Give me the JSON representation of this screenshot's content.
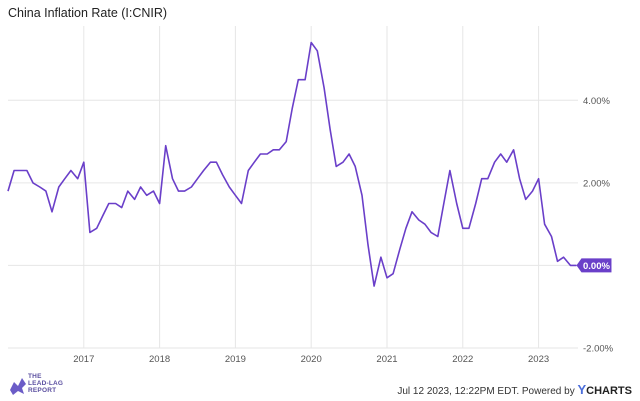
{
  "chart_data": {
    "type": "line",
    "title": "China Inflation Rate (I:CNIR)",
    "xlabel": "",
    "ylabel": "",
    "ylim": [
      -2.0,
      5.8
    ],
    "x_ticks": [
      "2017",
      "2018",
      "2019",
      "2020",
      "2021",
      "2022",
      "2023"
    ],
    "x_tick_positions": [
      2017,
      2018,
      2019,
      2020,
      2021,
      2022,
      2023
    ],
    "xlim": [
      2016.0,
      2023.52
    ],
    "y_ticks": [
      {
        "value": 4.0,
        "label": "4.00%"
      },
      {
        "value": 2.0,
        "label": "2.00%"
      },
      {
        "value": -2.0,
        "label": "-2.00%"
      }
    ],
    "last_value_label": "0.00%",
    "series": [
      {
        "name": "China Inflation Rate",
        "color": "#6a3fc9",
        "x": [
          2016.0,
          2016.08,
          2016.17,
          2016.25,
          2016.33,
          2016.42,
          2016.5,
          2016.58,
          2016.67,
          2016.75,
          2016.83,
          2016.92,
          2017.0,
          2017.08,
          2017.17,
          2017.25,
          2017.33,
          2017.42,
          2017.5,
          2017.58,
          2017.67,
          2017.75,
          2017.83,
          2017.92,
          2018.0,
          2018.08,
          2018.17,
          2018.25,
          2018.33,
          2018.42,
          2018.5,
          2018.58,
          2018.67,
          2018.75,
          2018.83,
          2018.92,
          2019.0,
          2019.08,
          2019.17,
          2019.25,
          2019.33,
          2019.42,
          2019.5,
          2019.58,
          2019.67,
          2019.75,
          2019.83,
          2019.92,
          2020.0,
          2020.08,
          2020.17,
          2020.25,
          2020.33,
          2020.42,
          2020.5,
          2020.58,
          2020.67,
          2020.75,
          2020.83,
          2020.92,
          2021.0,
          2021.08,
          2021.17,
          2021.25,
          2021.33,
          2021.42,
          2021.5,
          2021.58,
          2021.67,
          2021.75,
          2021.83,
          2021.92,
          2022.0,
          2022.08,
          2022.17,
          2022.25,
          2022.33,
          2022.42,
          2022.5,
          2022.58,
          2022.67,
          2022.75,
          2022.83,
          2022.92,
          2023.0,
          2023.08,
          2023.17,
          2023.25,
          2023.33,
          2023.42,
          2023.5
        ],
        "values": [
          1.8,
          2.3,
          2.3,
          2.3,
          2.0,
          1.9,
          1.8,
          1.3,
          1.9,
          2.1,
          2.3,
          2.1,
          2.5,
          0.8,
          0.9,
          1.2,
          1.5,
          1.5,
          1.4,
          1.8,
          1.6,
          1.9,
          1.7,
          1.8,
          1.5,
          2.9,
          2.1,
          1.8,
          1.8,
          1.9,
          2.1,
          2.3,
          2.5,
          2.5,
          2.2,
          1.9,
          1.7,
          1.5,
          2.3,
          2.5,
          2.7,
          2.7,
          2.8,
          2.8,
          3.0,
          3.8,
          4.5,
          4.5,
          5.4,
          5.2,
          4.3,
          3.3,
          2.4,
          2.5,
          2.7,
          2.4,
          1.7,
          0.5,
          -0.5,
          0.2,
          -0.3,
          -0.2,
          0.4,
          0.9,
          1.3,
          1.1,
          1.0,
          0.8,
          0.7,
          1.5,
          2.3,
          1.5,
          0.9,
          0.9,
          1.5,
          2.1,
          2.1,
          2.5,
          2.7,
          2.5,
          2.8,
          2.1,
          1.6,
          1.8,
          2.1,
          1.0,
          0.7,
          0.1,
          0.2,
          0.0,
          0.0
        ]
      }
    ]
  },
  "footer": {
    "logo_lines": [
      "THE",
      "LEAD-LAG",
      "REPORT"
    ],
    "timestamp": "Jul 12 2023, 12:22PM EDT.",
    "powered_by": "Powered by",
    "brand_y": "Y",
    "brand_rest": "CHARTS"
  }
}
